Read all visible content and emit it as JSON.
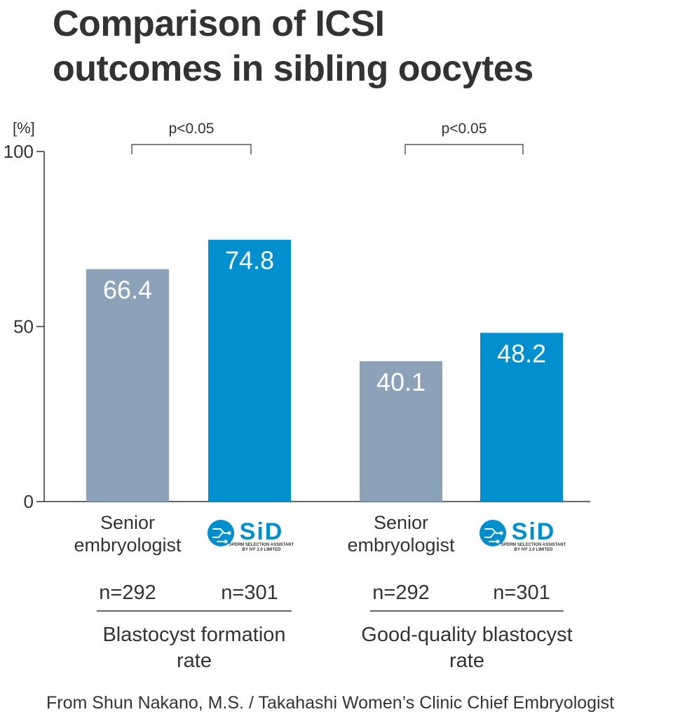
{
  "chart_data": {
    "type": "bar",
    "title": [
      "Comparison of ICSI",
      "outcomes in sibling oocytes"
    ],
    "ylabel": "[%]",
    "ylim": [
      0,
      100
    ],
    "yticks": [
      "0",
      "50",
      "100"
    ],
    "colors": {
      "senior": "#8ca2b8",
      "sid": "#0090d0",
      "axis": "#333333"
    },
    "groups": [
      {
        "label": [
          "Blastocyst formation",
          "rate"
        ],
        "p_value": "p<0.05",
        "bars": [
          {
            "series": "Senior embryologist",
            "label": [
              "Senior",
              "embryologist"
            ],
            "value": 66.4,
            "value_label": "66.4",
            "n": "n=292",
            "color_key": "senior"
          },
          {
            "series": "SiD",
            "logo": {
              "text": "SiD",
              "subtitle1": "SPERM SELECTION ASSISTANT",
              "subtitle2": "BY IVF 2.0 LIMITED"
            },
            "value": 74.8,
            "value_label": "74.8",
            "n": "n=301",
            "color_key": "sid"
          }
        ]
      },
      {
        "label": [
          "Good-quality blastocyst",
          "rate"
        ],
        "p_value": "p<0.05",
        "bars": [
          {
            "series": "Senior embryologist",
            "label": [
              "Senior",
              "embryologist"
            ],
            "value": 40.1,
            "value_label": "40.1",
            "n": "n=292",
            "color_key": "senior"
          },
          {
            "series": "SiD",
            "logo": {
              "text": "SiD",
              "subtitle1": "SPERM SELECTION ASSISTANT",
              "subtitle2": "BY IVF 2.0 LIMITED"
            },
            "value": 48.2,
            "value_label": "48.2",
            "n": "n=301",
            "color_key": "sid"
          }
        ]
      }
    ]
  },
  "source": "From Shun Nakano, M.S. / Takahashi Women’s Clinic Chief Embryologist"
}
